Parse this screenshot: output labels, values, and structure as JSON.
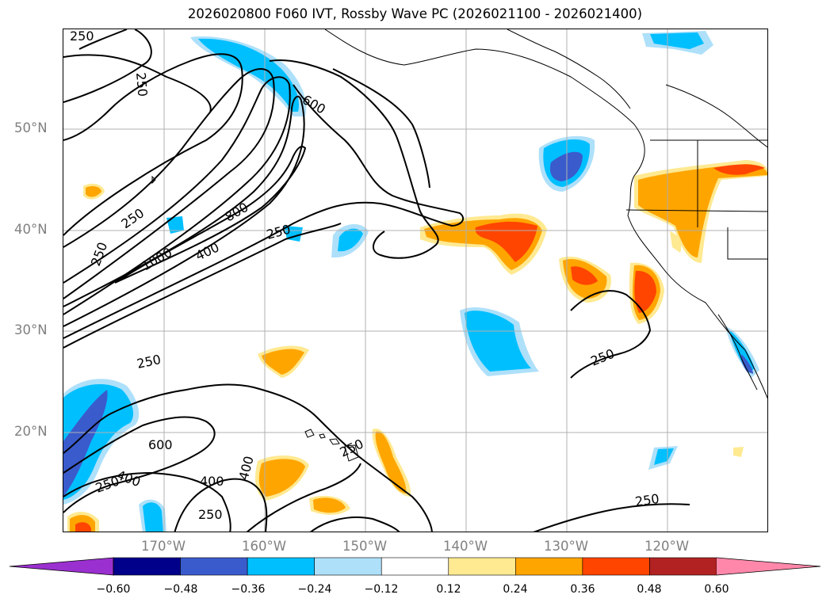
{
  "title": "2026020800 F060 IVT, Rossby Wave PC (2026021100 - 2026021400)",
  "lat_labels": [
    "50°N",
    "40°N",
    "30°N",
    "20°N"
  ],
  "lon_labels": [
    "170°W",
    "160°W",
    "150°W",
    "140°W",
    "130°W",
    "120°W"
  ],
  "colorbar": {
    "ticks": [
      "−0.60",
      "−0.48",
      "−0.36",
      "−0.24",
      "−0.12",
      "0.12",
      "0.24",
      "0.36",
      "0.48",
      "0.60"
    ],
    "colors": [
      "#9b30d0",
      "#00008b",
      "#3a5bcc",
      "#00bfff",
      "#aee0fa",
      "#ffffff",
      "#ffe991",
      "#ffa500",
      "#ff4500",
      "#b22222",
      "#ff88aa"
    ]
  },
  "contour_labels": [
    "250",
    "250",
    "600",
    "250",
    "800",
    "250",
    "1000",
    "400",
    "250",
    "250",
    "600",
    "400",
    "250",
    "400",
    "400",
    "250",
    "250",
    "250",
    "250"
  ],
  "colors": {
    "neg_light": "#aee0fa",
    "neg_mid": "#00bfff",
    "neg_dark": "#3a5bcc",
    "pos_light": "#ffe991",
    "pos_mid": "#ffa500",
    "pos_dark": "#ff4500",
    "gridline": "#b0b0b0",
    "axis_text": "#808080"
  }
}
